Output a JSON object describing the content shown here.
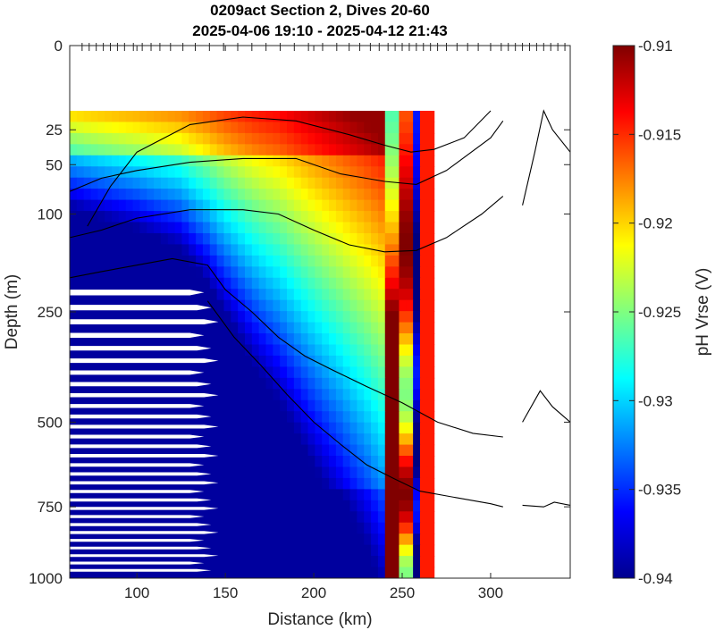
{
  "chart_data": {
    "type": "heatmap",
    "title": "0209act Section 2, Dives 20-60",
    "subtitle": "2025-04-06 19:10 - 2025-04-12 21:43",
    "xlabel": "Distance (km)",
    "ylabel": "Depth (m)",
    "colorbar_label": "pH Vrse (V)",
    "xlim": [
      62,
      345
    ],
    "ylim": [
      0,
      1000
    ],
    "y_scale": "sqrt",
    "x_ticks": [
      100,
      150,
      200,
      250,
      300
    ],
    "x_tick_labels": [
      "100",
      "150",
      "200",
      "250",
      "300"
    ],
    "y_ticks": [
      0,
      25,
      50,
      100,
      250,
      500,
      750,
      1000
    ],
    "y_tick_labels": [
      "0",
      "25",
      "50",
      "100",
      "250",
      "500",
      "750",
      "1000"
    ],
    "clim": [
      -0.94,
      -0.91
    ],
    "colorbar_ticks": [
      -0.91,
      -0.915,
      -0.92,
      -0.925,
      -0.93,
      -0.935,
      -0.94
    ],
    "colorbar_tick_labels": [
      "-0.91",
      "-0.915",
      "-0.92",
      "-0.925",
      "-0.93",
      "-0.935",
      "-0.94"
    ],
    "colormap": "jet",
    "data_extent_km": [
      62,
      268
    ],
    "data_top_depth_m": 15,
    "grid": false,
    "dive_positions_km": [
      69,
      73,
      77,
      81,
      85,
      89,
      93,
      98,
      103,
      108,
      113,
      119,
      126,
      133,
      141,
      149,
      157,
      165,
      173,
      181,
      189,
      197,
      205,
      213,
      220,
      226,
      232,
      237,
      242,
      246,
      250,
      254,
      258,
      262,
      266,
      270,
      275,
      281,
      287,
      293,
      300,
      306,
      310,
      314,
      318,
      322,
      326,
      330,
      334,
      338,
      342
    ],
    "contours": [
      {
        "name": "c1",
        "points": [
          [
            72,
            115
          ],
          [
            85,
            70
          ],
          [
            100,
            40
          ],
          [
            130,
            22
          ],
          [
            160,
            18
          ],
          [
            190,
            20
          ],
          [
            220,
            28
          ],
          [
            240,
            35
          ],
          [
            255,
            40
          ],
          [
            268,
            38
          ],
          [
            285,
            30
          ],
          [
            300,
            15
          ]
        ]
      },
      {
        "name": "c2",
        "points": [
          [
            62,
            75
          ],
          [
            80,
            62
          ],
          [
            100,
            55
          ],
          [
            130,
            48
          ],
          [
            160,
            45
          ],
          [
            190,
            45
          ],
          [
            215,
            58
          ],
          [
            240,
            65
          ],
          [
            258,
            68
          ],
          [
            275,
            55
          ],
          [
            300,
            30
          ],
          [
            307,
            20
          ]
        ]
      },
      {
        "name": "c3",
        "points": [
          [
            62,
            130
          ],
          [
            80,
            120
          ],
          [
            100,
            105
          ],
          [
            130,
            95
          ],
          [
            160,
            95
          ],
          [
            180,
            100
          ],
          [
            200,
            120
          ],
          [
            220,
            140
          ],
          [
            240,
            150
          ],
          [
            258,
            148
          ],
          [
            275,
            130
          ],
          [
            295,
            100
          ],
          [
            307,
            80
          ]
        ]
      },
      {
        "name": "c4",
        "points": [
          [
            62,
            190
          ],
          [
            80,
            180
          ],
          [
            100,
            170
          ],
          [
            120,
            160
          ],
          [
            140,
            170
          ],
          [
            150,
            210
          ],
          [
            165,
            250
          ],
          [
            180,
            300
          ],
          [
            195,
            340
          ],
          [
            210,
            370
          ],
          [
            230,
            410
          ],
          [
            250,
            450
          ],
          [
            270,
            500
          ],
          [
            290,
            530
          ],
          [
            307,
            540
          ]
        ]
      },
      {
        "name": "c5",
        "points": [
          [
            140,
            230
          ],
          [
            155,
            300
          ],
          [
            170,
            360
          ],
          [
            185,
            430
          ],
          [
            200,
            500
          ],
          [
            215,
            560
          ],
          [
            230,
            620
          ],
          [
            245,
            660
          ],
          [
            260,
            700
          ],
          [
            280,
            720
          ],
          [
            300,
            740
          ],
          [
            307,
            750
          ]
        ]
      },
      {
        "name": "c6",
        "points": [
          [
            318,
            90
          ],
          [
            325,
            40
          ],
          [
            330,
            15
          ],
          [
            335,
            25
          ],
          [
            345,
            40
          ]
        ]
      },
      {
        "name": "c7",
        "points": [
          [
            318,
            500
          ],
          [
            328,
            420
          ],
          [
            335,
            460
          ],
          [
            345,
            500
          ]
        ]
      },
      {
        "name": "c8",
        "points": [
          [
            318,
            745
          ],
          [
            330,
            750
          ],
          [
            336,
            735
          ],
          [
            345,
            745
          ]
        ]
      }
    ]
  }
}
